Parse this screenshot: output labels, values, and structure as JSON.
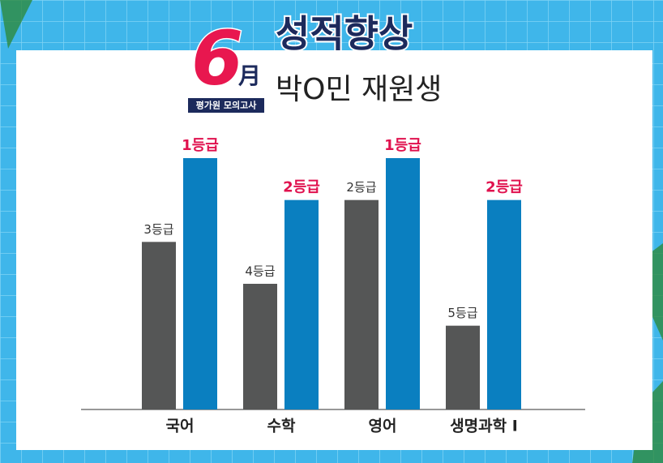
{
  "header": {
    "month_number": "6",
    "month_char": "月",
    "badge": "평가원 모의고사",
    "title": "성적향상",
    "subtitle": "박O민 재원생"
  },
  "chart_data": {
    "type": "bar",
    "categories": [
      "국어",
      "수학",
      "영어",
      "생명과학 I"
    ],
    "series": [
      {
        "color": "#555656",
        "values": [
          3,
          4,
          2,
          5
        ],
        "value_labels": [
          "3등급",
          "4등급",
          "2등급",
          "5등급"
        ]
      },
      {
        "color": "#0a7fc0",
        "values": [
          1,
          2,
          1,
          2
        ],
        "value_labels": [
          "1등급",
          "2등급",
          "1등급",
          "2등급"
        ]
      }
    ],
    "ylim": [
      7,
      1
    ]
  }
}
